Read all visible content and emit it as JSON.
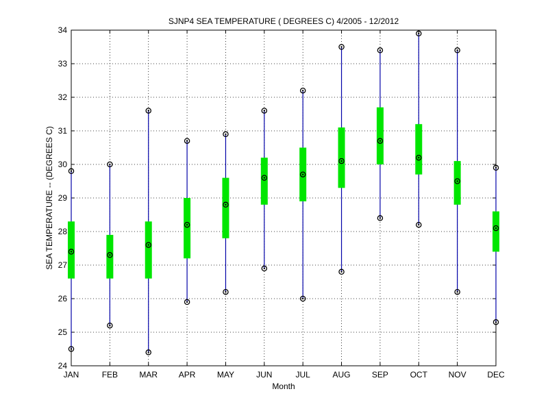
{
  "chart_data": {
    "type": "boxplot",
    "title": "SJNP4  SEA TEMPERATURE ( DEGREES C) 4/2005 - 12/2012",
    "xlabel": "Month",
    "ylabel": "SEA TEMPERATURE -- (DEGREES C)",
    "ylim": [
      24,
      34
    ],
    "yticks": [
      24,
      25,
      26,
      27,
      28,
      29,
      30,
      31,
      32,
      33,
      34
    ],
    "categories": [
      "JAN",
      "FEB",
      "MAR",
      "APR",
      "MAY",
      "JUN",
      "JUL",
      "AUG",
      "SEP",
      "OCT",
      "NOV",
      "DEC"
    ],
    "grid": true,
    "series": [
      {
        "min": 24.5,
        "q1": 26.6,
        "median": 27.4,
        "q3": 28.3,
        "max": 29.8
      },
      {
        "min": 25.2,
        "q1": 26.6,
        "median": 27.3,
        "q3": 27.9,
        "max": 30.0
      },
      {
        "min": 24.4,
        "q1": 26.6,
        "median": 27.6,
        "q3": 28.3,
        "max": 31.6
      },
      {
        "min": 25.9,
        "q1": 27.2,
        "median": 28.2,
        "q3": 29.0,
        "max": 30.7
      },
      {
        "min": 26.2,
        "q1": 27.8,
        "median": 28.8,
        "q3": 29.6,
        "max": 30.9
      },
      {
        "min": 26.9,
        "q1": 28.8,
        "median": 29.6,
        "q3": 30.2,
        "max": 31.6
      },
      {
        "min": 26.0,
        "q1": 28.9,
        "median": 29.7,
        "q3": 30.5,
        "max": 32.2
      },
      {
        "min": 26.8,
        "q1": 29.3,
        "median": 30.1,
        "q3": 31.1,
        "max": 33.5
      },
      {
        "min": 28.4,
        "q1": 30.0,
        "median": 30.7,
        "q3": 31.7,
        "max": 33.4
      },
      {
        "min": 28.2,
        "q1": 29.7,
        "median": 30.2,
        "q3": 31.2,
        "max": 33.9
      },
      {
        "min": 26.2,
        "q1": 28.8,
        "median": 29.5,
        "q3": 30.1,
        "max": 33.4
      },
      {
        "min": 25.3,
        "q1": 27.4,
        "median": 28.1,
        "q3": 28.6,
        "max": 29.9
      }
    ],
    "colors": {
      "whisker": "#0000a8",
      "box": "#00e600",
      "marker": "#000000"
    }
  }
}
